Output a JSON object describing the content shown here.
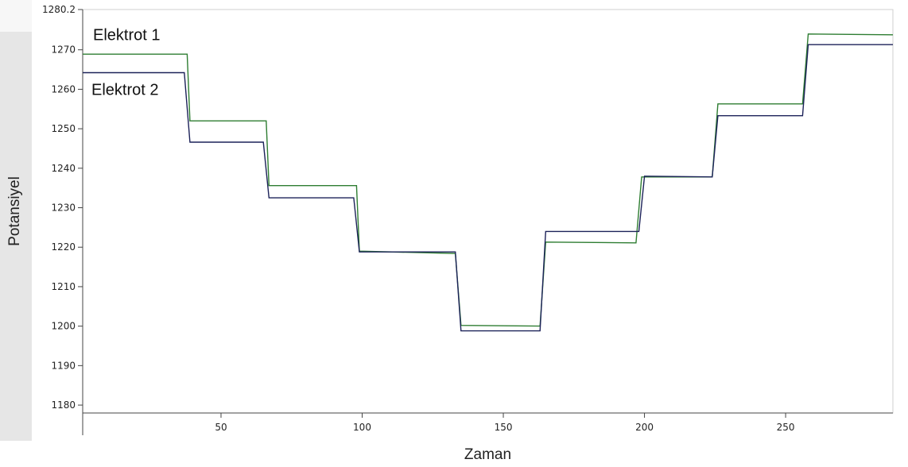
{
  "chart_data": {
    "type": "line",
    "title": "",
    "xlabel": "Zaman",
    "ylabel": "Potansiyel",
    "xlim": [
      1,
      288
    ],
    "ylim": [
      1178,
      1280.2
    ],
    "x_ticks": [
      50,
      100,
      150,
      200,
      250
    ],
    "y_ticks": [
      1180,
      1190,
      1200,
      1210,
      1220,
      1230,
      1240,
      1250,
      1260,
      1270,
      1280.2
    ],
    "grid": false,
    "series_labels": [
      "Elektrot 1",
      "Elektrot 2"
    ],
    "series": [
      {
        "name": "Elektrot 1",
        "color": "#2e7d32",
        "points": [
          [
            1,
            1268.9
          ],
          [
            38,
            1268.9
          ],
          [
            39,
            1252.0
          ],
          [
            66,
            1252.0
          ],
          [
            67,
            1235.6
          ],
          [
            98,
            1235.6
          ],
          [
            99,
            1219.0
          ],
          [
            133,
            1218.4
          ],
          [
            135,
            1200.2
          ],
          [
            163,
            1200.0
          ],
          [
            165,
            1221.3
          ],
          [
            197,
            1221.1
          ],
          [
            199,
            1237.8
          ],
          [
            224,
            1237.8
          ],
          [
            226,
            1256.3
          ],
          [
            256,
            1256.3
          ],
          [
            258,
            1274.0
          ],
          [
            288,
            1273.8
          ]
        ]
      },
      {
        "name": "Elektrot 2",
        "color": "#1c2259",
        "points": [
          [
            1,
            1264.2
          ],
          [
            37,
            1264.2
          ],
          [
            39,
            1246.6
          ],
          [
            65,
            1246.6
          ],
          [
            67,
            1232.5
          ],
          [
            97,
            1232.5
          ],
          [
            99,
            1218.8
          ],
          [
            133,
            1218.8
          ],
          [
            135,
            1198.8
          ],
          [
            163,
            1198.8
          ],
          [
            165,
            1224.0
          ],
          [
            198,
            1224.0
          ],
          [
            200,
            1238.0
          ],
          [
            224,
            1237.8
          ],
          [
            226,
            1253.3
          ],
          [
            256,
            1253.3
          ],
          [
            258,
            1271.3
          ],
          [
            288,
            1271.3
          ]
        ]
      }
    ]
  }
}
